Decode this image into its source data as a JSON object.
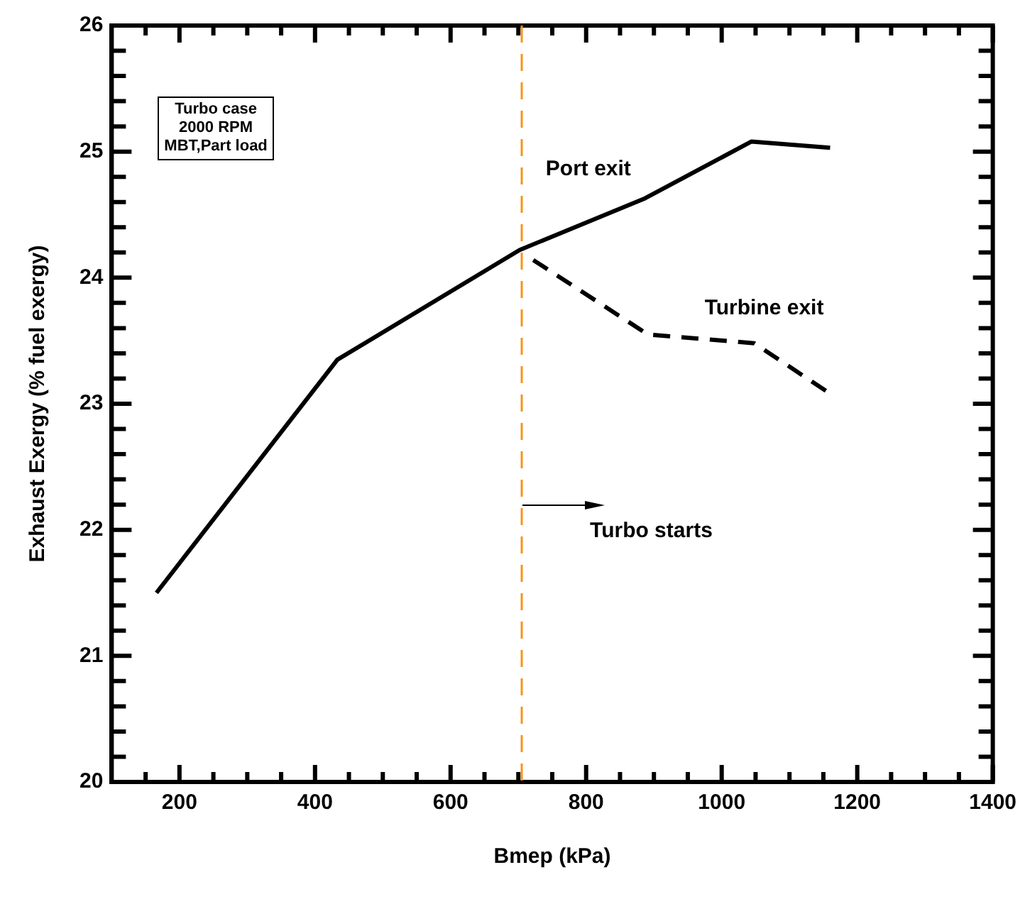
{
  "chart_data": {
    "type": "line",
    "xlabel": "Bmep (kPa)",
    "ylabel": "Exhaust Exergy (% fuel exergy)",
    "xlim": [
      100,
      1400
    ],
    "ylim": [
      20,
      26
    ],
    "xticks": [
      {
        "value": 150,
        "label": null
      },
      200,
      {
        "value": 250,
        "label": null
      },
      {
        "value": 300,
        "label": null
      },
      {
        "value": 350,
        "label": null
      },
      400,
      {
        "value": 450,
        "label": null
      },
      {
        "value": 500,
        "label": null
      },
      {
        "value": 550,
        "label": null
      },
      600,
      {
        "value": 650,
        "label": null
      },
      {
        "value": 700,
        "label": null
      },
      {
        "value": 750,
        "label": null
      },
      800,
      {
        "value": 850,
        "label": null
      },
      {
        "value": 900,
        "label": null
      },
      {
        "value": 950,
        "label": null
      },
      1000,
      {
        "value": 1050,
        "label": null
      },
      {
        "value": 1100,
        "label": null
      },
      {
        "value": 1150,
        "label": null
      },
      1200,
      {
        "value": 1250,
        "label": null
      },
      {
        "value": 1300,
        "label": null
      },
      {
        "value": 1350,
        "label": null
      },
      1400
    ],
    "yticks": [
      20,
      {
        "value": 20.2,
        "label": null
      },
      {
        "value": 20.4,
        "label": null
      },
      {
        "value": 20.6,
        "label": null
      },
      {
        "value": 20.8,
        "label": null
      },
      21,
      {
        "value": 21.2,
        "label": null
      },
      {
        "value": 21.4,
        "label": null
      },
      {
        "value": 21.6,
        "label": null
      },
      {
        "value": 21.8,
        "label": null
      },
      22,
      {
        "value": 22.2,
        "label": null
      },
      {
        "value": 22.4,
        "label": null
      },
      {
        "value": 22.6,
        "label": null
      },
      {
        "value": 22.8,
        "label": null
      },
      23,
      {
        "value": 23.2,
        "label": null
      },
      {
        "value": 23.4,
        "label": null
      },
      {
        "value": 23.6,
        "label": null
      },
      {
        "value": 23.8,
        "label": null
      },
      24,
      {
        "value": 24.2,
        "label": null
      },
      {
        "value": 24.4,
        "label": null
      },
      {
        "value": 24.6,
        "label": null
      },
      {
        "value": 24.8,
        "label": null
      },
      25,
      {
        "value": 25.2,
        "label": null
      },
      {
        "value": 25.4,
        "label": null
      },
      {
        "value": 25.6,
        "label": null
      },
      {
        "value": 25.8,
        "label": null
      },
      26
    ],
    "grid": false,
    "legend": false,
    "marker": "none",
    "series": [
      {
        "name": "Port exit",
        "color": "#000000",
        "line_style": "solid",
        "x": [
          166,
          433,
          702,
          887,
          1044,
          1160
        ],
        "values": [
          21.5,
          23.35,
          24.22,
          24.63,
          25.08,
          25.03
        ]
      },
      {
        "name": "Turbine exit",
        "color": "#000000",
        "line_style": "dashed",
        "x": [
          722,
          891,
          1048,
          1160
        ],
        "values": [
          24.14,
          23.55,
          23.48,
          23.08
        ]
      }
    ],
    "ref_lines": [
      {
        "axis": "x",
        "value": 705,
        "color": "#f7941d",
        "line_style": "dashed"
      }
    ],
    "annotations": [
      "Turbo case\n2000 RPM\nMBT,Part load",
      {
        "text": "Turbo starts",
        "x": 705,
        "y": 22.2
      }
    ]
  }
}
